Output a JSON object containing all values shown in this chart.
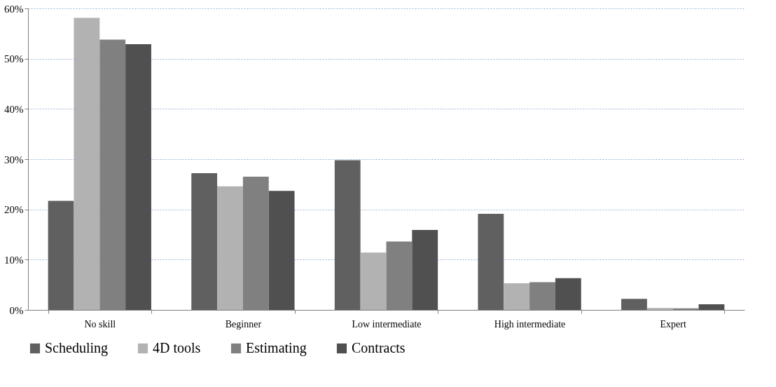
{
  "chart_data": {
    "type": "bar",
    "categories": [
      "No skill",
      "Beginner",
      "Low intermediate",
      "High intermediate",
      "Expert"
    ],
    "series": [
      {
        "name": "Scheduling",
        "color": "#606060",
        "values": [
          21.7,
          27.2,
          29.8,
          19.1,
          2.2
        ]
      },
      {
        "name": "4D tools",
        "color": "#b2b2b2",
        "values": [
          58.1,
          24.6,
          11.4,
          5.3,
          0.4
        ]
      },
      {
        "name": "Estimating",
        "color": "#808080",
        "values": [
          53.8,
          26.5,
          13.6,
          5.5,
          0.3
        ]
      },
      {
        "name": "Contracts",
        "color": "#505050",
        "values": [
          52.9,
          23.7,
          15.9,
          6.3,
          1.1
        ]
      }
    ],
    "ylim": [
      0,
      60
    ],
    "yticks": [
      {
        "value": 0,
        "label": "0%"
      },
      {
        "value": 10,
        "label": "10%"
      },
      {
        "value": 20,
        "label": "20%"
      },
      {
        "value": 30,
        "label": "30%"
      },
      {
        "value": 40,
        "label": "40%"
      },
      {
        "value": 50,
        "label": "50%"
      },
      {
        "value": 60,
        "label": "60%"
      }
    ],
    "grid": "y",
    "legend": "bottom"
  }
}
